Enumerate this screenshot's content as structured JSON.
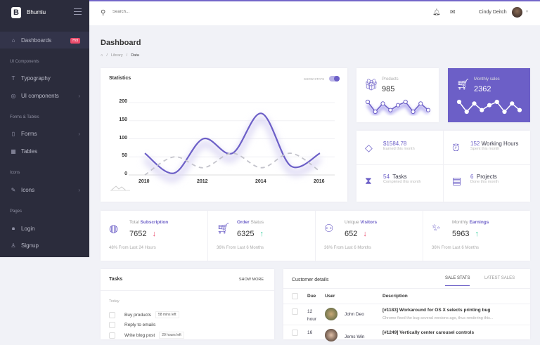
{
  "app": {
    "brand": "Bhumlu",
    "logo_letter": "B"
  },
  "sidebar": {
    "items": [
      {
        "label": "Dashboards",
        "icon": "home-icon",
        "badge": "Hot"
      },
      {
        "section": "UI Components"
      },
      {
        "label": "Typography",
        "icon": "text-icon"
      },
      {
        "label": "UI components",
        "icon": "box-icon",
        "chevron": true
      },
      {
        "section": "Forms & Tables"
      },
      {
        "label": "Forms",
        "icon": "clipboard-icon",
        "chevron": true
      },
      {
        "label": "Tables",
        "icon": "table-icon"
      },
      {
        "section": "Icons"
      },
      {
        "label": "Icons",
        "icon": "feather-icon",
        "chevron": true
      },
      {
        "section": "Pages"
      },
      {
        "label": "Login",
        "icon": "lock-icon"
      },
      {
        "label": "Signup",
        "icon": "user-icon"
      }
    ]
  },
  "header": {
    "search_placeholder": "Search...",
    "user_name": "Cindy Deitch"
  },
  "page": {
    "title": "Dashboard",
    "breadcrumb": [
      "Library",
      "Data"
    ]
  },
  "statistics": {
    "title": "Statistics",
    "toggle_label": "SHOW STATS",
    "toggle_on": true
  },
  "chart_data": {
    "type": "line",
    "x": [
      2010,
      2011,
      2012,
      2013,
      2014,
      2015,
      2016
    ],
    "xticks": [
      "2010",
      "2012",
      "2014",
      "2016"
    ],
    "yticks": [
      "0",
      "50",
      "100",
      "150",
      "200"
    ],
    "ylim": [
      0,
      200
    ],
    "grid": true,
    "series": [
      {
        "values": [
          60,
          5,
          100,
          60,
          170,
          25,
          60
        ],
        "style": "solid",
        "color": "#6c5fc7"
      },
      {
        "values": [
          0,
          50,
          20,
          60,
          20,
          60,
          10
        ],
        "style": "dashed",
        "color": "#c4c4cc"
      }
    ]
  },
  "products": {
    "label": "Products",
    "value": "985",
    "spark": [
      8,
      2,
      7,
      3,
      6,
      8,
      2,
      7,
      3
    ]
  },
  "monthly_sales": {
    "label": "Monthly sales",
    "value": "2362",
    "spark": [
      8,
      2,
      7,
      3,
      6,
      8,
      2,
      7,
      3
    ],
    "bg": "#6c5fc7"
  },
  "info": [
    {
      "value": "$1584.78",
      "text": "",
      "sub": "Earned this month",
      "icon": "diamond-icon"
    },
    {
      "value": "152",
      "text": "Working Hours",
      "sub": "Spent this month",
      "icon": "alarm-clock-icon"
    },
    {
      "value": "54",
      "text": "Tasks",
      "sub": "Completed this month",
      "icon": "hourglass-icon"
    },
    {
      "value": "6",
      "text": "Projects",
      "sub": "Done this month",
      "icon": "news-icon"
    }
  ],
  "stats": [
    {
      "pre": "Total",
      "em": "Subscription",
      "post": "",
      "value": "7652",
      "trend": "down",
      "foot": "48% From Last 24 Hours",
      "icon": "globe-icon"
    },
    {
      "pre": "",
      "em": "Order",
      "post": "Status",
      "value": "6325",
      "trend": "up",
      "foot": "36% From Last 6 Months",
      "icon": "cart-icon"
    },
    {
      "pre": "Unique",
      "em": "Visitors",
      "post": "",
      "value": "652",
      "trend": "down",
      "foot": "36% From Last 6 Months",
      "icon": "users-icon"
    },
    {
      "pre": "Monthly",
      "em": "Earnings",
      "post": "",
      "value": "5963",
      "trend": "up",
      "foot": "36% From Last 6 Months",
      "icon": "magic-wand-icon"
    }
  ],
  "tasks": {
    "title": "Tasks",
    "show_more": "SHOW MORE",
    "group": "Today",
    "items": [
      {
        "label": "Buy products",
        "tag": "58 mins left"
      },
      {
        "label": "Reply to emails",
        "tag": ""
      },
      {
        "label": "Write blog post",
        "tag": "20 hours left"
      }
    ]
  },
  "customers": {
    "title": "Customer details",
    "tabs": [
      "SALE STATS",
      "LATEST SALES"
    ],
    "columns": [
      "Due",
      "User",
      "Description"
    ],
    "rows": [
      {
        "due": "12",
        "due_unit": "hour",
        "user": "John Deo",
        "title": "[#1183] Workaround for OS X selects printing bug",
        "desc": "Chrome fixed the bug several versions ago, thus rendering this..."
      },
      {
        "due": "16",
        "due_unit": "",
        "user": "Jems Win",
        "title": "[#1249] Vertically center carousel controls",
        "desc": ""
      }
    ]
  }
}
